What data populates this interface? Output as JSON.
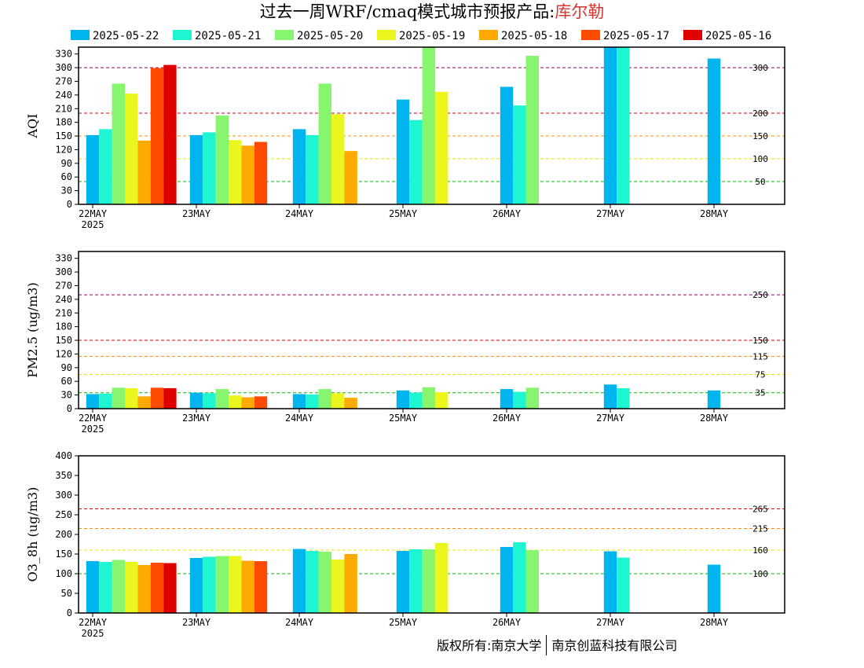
{
  "title": {
    "prefix": "过去一周WRF/cmaq模式城市预报产品:",
    "city": "库尔勒"
  },
  "credit": {
    "owner": "版权所有:南京大学",
    "company": "南京创蓝科技有限公司"
  },
  "chart_data": {
    "type": "bar",
    "categories": [
      "22MAY",
      "23MAY",
      "24MAY",
      "25MAY",
      "26MAY",
      "27MAY",
      "28MAY"
    ],
    "year_label": "2025",
    "legend": [
      {
        "name": "2025-05-22",
        "color": "#00b4f0"
      },
      {
        "name": "2025-05-21",
        "color": "#1ef5d2"
      },
      {
        "name": "2025-05-20",
        "color": "#87f56e"
      },
      {
        "name": "2025-05-19",
        "color": "#ebf51e"
      },
      {
        "name": "2025-05-18",
        "color": "#ffaa00"
      },
      {
        "name": "2025-05-17",
        "color": "#ff4b00"
      },
      {
        "name": "2025-05-16",
        "color": "#e00000"
      }
    ],
    "panels": [
      {
        "ylabel": "AQI",
        "ylim": [
          0,
          345
        ],
        "yticks": [
          0,
          30,
          60,
          90,
          120,
          150,
          180,
          210,
          240,
          270,
          300,
          330
        ],
        "thresholds": [
          {
            "value": 50,
            "label": "50",
            "color": "#00bb00"
          },
          {
            "value": 100,
            "label": "100",
            "color": "#e5e500"
          },
          {
            "value": 150,
            "label": "150",
            "color": "#ff8c00"
          },
          {
            "value": 200,
            "label": "200",
            "color": "#dd0000"
          },
          {
            "value": 300,
            "label": "300",
            "color": "#9b0050"
          }
        ],
        "groups": [
          [
            152,
            165,
            265,
            243,
            140,
            299,
            306
          ],
          [
            152,
            158,
            195,
            141,
            129,
            137
          ],
          [
            165,
            152,
            265,
            198,
            117
          ],
          [
            230,
            185,
            345,
            247
          ],
          [
            258,
            217,
            326
          ],
          [
            345,
            345
          ],
          [
            320
          ]
        ]
      },
      {
        "ylabel": "PM2.5 (ug/m3)",
        "ylim": [
          0,
          345
        ],
        "yticks": [
          0,
          30,
          60,
          90,
          120,
          150,
          180,
          210,
          240,
          270,
          300,
          330
        ],
        "thresholds": [
          {
            "value": 35,
            "label": "35",
            "color": "#00bb00"
          },
          {
            "value": 75,
            "label": "75",
            "color": "#e5e500"
          },
          {
            "value": 115,
            "label": "115",
            "color": "#ff8c00"
          },
          {
            "value": 150,
            "label": "150",
            "color": "#dd0000"
          },
          {
            "value": 250,
            "label": "250",
            "color": "#9b0050"
          }
        ],
        "groups": [
          [
            32,
            33,
            46,
            45,
            27,
            46,
            45
          ],
          [
            35,
            34,
            43,
            29,
            25,
            27
          ],
          [
            32,
            31,
            43,
            34,
            24
          ],
          [
            40,
            35,
            47,
            36
          ],
          [
            43,
            37,
            46
          ],
          [
            53,
            45
          ],
          [
            40
          ]
        ]
      },
      {
        "ylabel": "O3_8h (ug/m3)",
        "ylim": [
          0,
          400
        ],
        "yticks": [
          0,
          50,
          100,
          150,
          200,
          250,
          300,
          350,
          400
        ],
        "thresholds": [
          {
            "value": 100,
            "label": "100",
            "color": "#00bb00"
          },
          {
            "value": 160,
            "label": "160",
            "color": "#e5e500"
          },
          {
            "value": 215,
            "label": "215",
            "color": "#ff8c00"
          },
          {
            "value": 265,
            "label": "265",
            "color": "#dd0000"
          }
        ],
        "groups": [
          [
            132,
            130,
            135,
            130,
            122,
            128,
            127
          ],
          [
            140,
            143,
            145,
            145,
            133,
            132
          ],
          [
            163,
            158,
            156,
            136,
            150
          ],
          [
            158,
            162,
            162,
            178
          ],
          [
            168,
            180,
            160
          ],
          [
            157,
            141
          ],
          [
            123
          ]
        ]
      }
    ]
  }
}
